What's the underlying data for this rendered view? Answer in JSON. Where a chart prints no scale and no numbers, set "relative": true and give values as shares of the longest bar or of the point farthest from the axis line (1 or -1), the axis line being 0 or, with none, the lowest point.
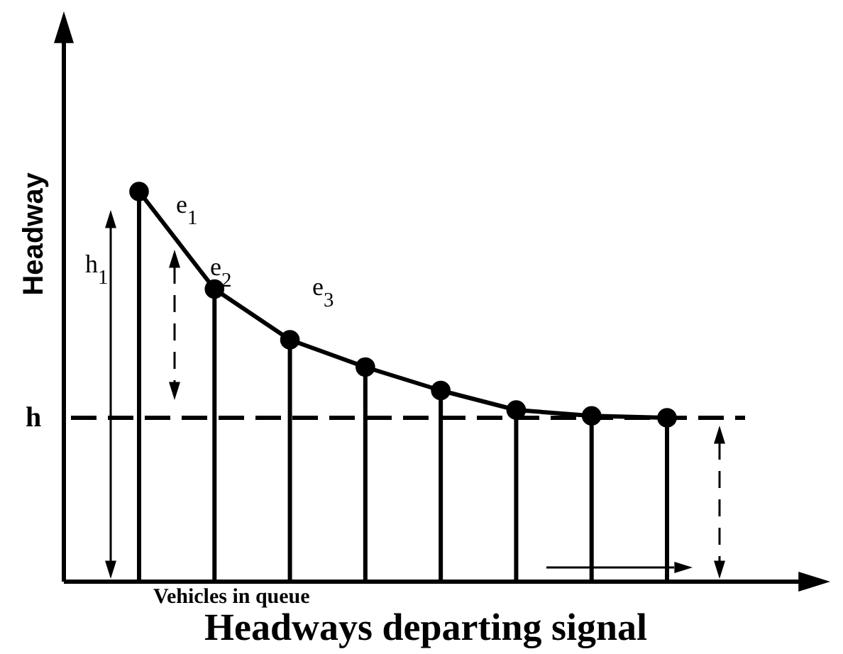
{
  "chart_data": {
    "type": "line",
    "relative": true,
    "xlabel": "Headways  departing signal",
    "ylabel": "Headway",
    "categories": [
      null,
      null,
      null,
      null,
      null,
      null,
      null,
      null
    ],
    "series": [
      {
        "color": "#000000",
        "values": [
          1,
          0.75,
          0.62,
          0.55,
          0.49,
          0.44,
          0.425,
          0.42
        ]
      }
    ],
    "marker": "circle",
    "ref_lines": [
      {
        "axis": "y",
        "value": 0.42,
        "label": "h",
        "line_style": "dashed",
        "color": "#000000"
      }
    ],
    "annotations": [
      "h$_{1}$",
      "e$_{1}$",
      "e$_{2}$",
      "e$_{3}$",
      "Vehicles in queue"
    ]
  }
}
